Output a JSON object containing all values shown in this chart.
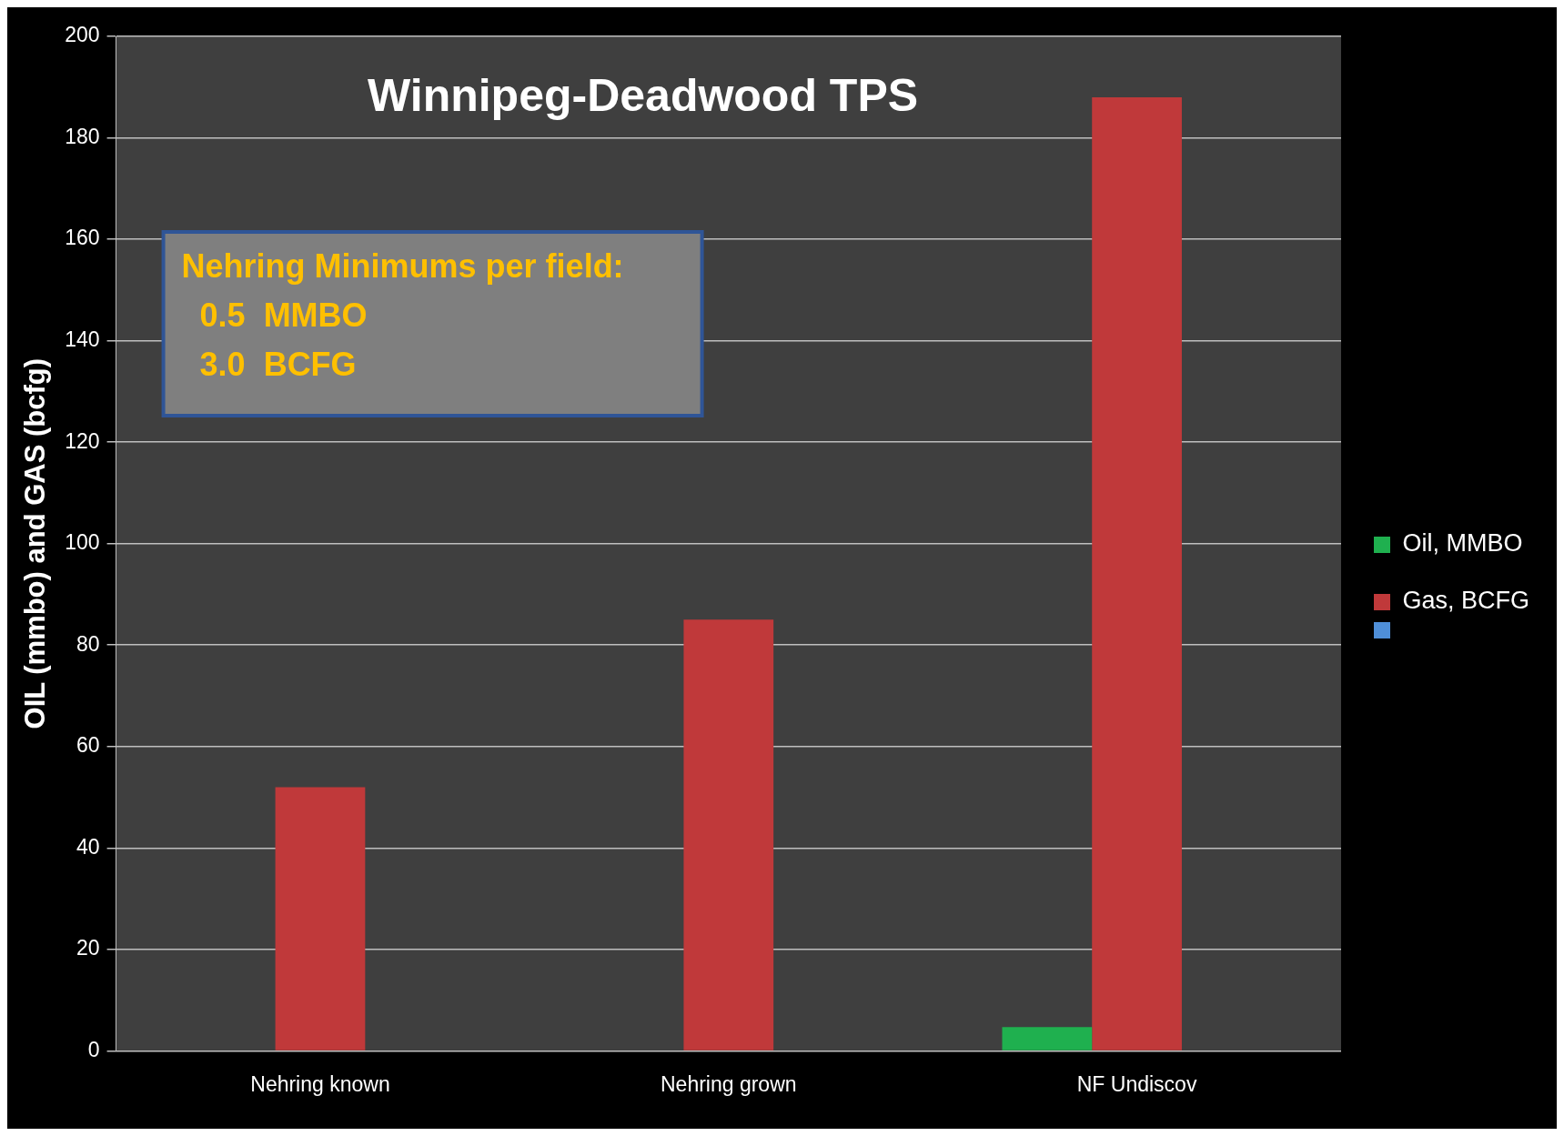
{
  "chart_data": {
    "type": "bar",
    "title": "Winnipeg-Deadwood TPS",
    "ylabel": "OIL (mmbo) and GAS (bcfg)",
    "categories": [
      "Nehring known",
      "Nehring grown",
      "NF Undiscov"
    ],
    "series": [
      {
        "name": "Oil, MMBO",
        "color": "#1fb04f",
        "values": [
          null,
          null,
          4.7
        ]
      },
      {
        "name": "Gas, BCFG",
        "color": "#c0393a",
        "values": [
          52,
          85,
          188
        ]
      },
      {
        "color": "#4f8fd8",
        "values": [
          null,
          null,
          null
        ]
      }
    ],
    "ylim": [
      0,
      200
    ],
    "yticks": [
      0,
      20,
      40,
      60,
      80,
      100,
      120,
      140,
      160,
      180,
      200
    ],
    "grid": "y",
    "legend": "right",
    "annotations": [
      "Nehring Minimums per field:\n  0.5  MMBO\n  3.0  BCFG"
    ]
  }
}
